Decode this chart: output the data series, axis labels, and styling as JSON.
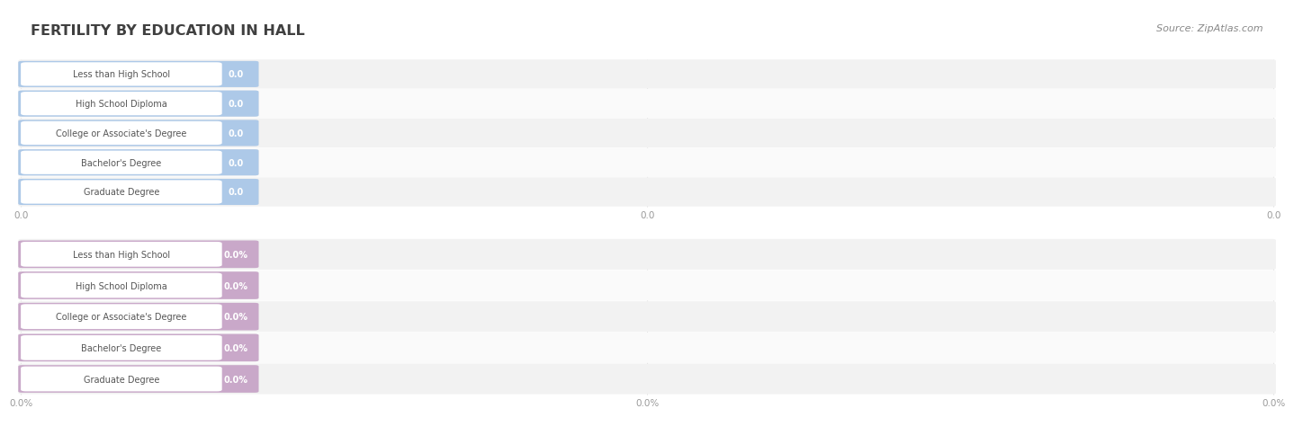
{
  "title": "FERTILITY BY EDUCATION IN HALL",
  "source": "Source: ZipAtlas.com",
  "background_color": "#ffffff",
  "section1": {
    "categories": [
      "Less than High School",
      "High School Diploma",
      "College or Associate's Degree",
      "Bachelor's Degree",
      "Graduate Degree"
    ],
    "values": [
      0.0,
      0.0,
      0.0,
      0.0,
      0.0
    ],
    "bar_color": "#adc9e8",
    "value_color": "#ffffff",
    "axis_ticks": [
      "0.0",
      "0.0",
      "0.0"
    ],
    "xmax": 1.0
  },
  "section2": {
    "categories": [
      "Less than High School",
      "High School Diploma",
      "College or Associate's Degree",
      "Bachelor's Degree",
      "Graduate Degree"
    ],
    "values": [
      0.0,
      0.0,
      0.0,
      0.0,
      0.0
    ],
    "bar_color": "#c9a8c9",
    "value_color": "#ffffff",
    "axis_ticks": [
      "0.0%",
      "0.0%",
      "0.0%"
    ],
    "xmax": 1.0
  },
  "bar_bg_color": "#e8e8e8",
  "row_bg_even": "#f2f2f2",
  "row_bg_odd": "#fafafa",
  "title_color": "#404040",
  "tick_color": "#999999",
  "source_color": "#888888",
  "grid_color": "#dddddd",
  "label_text_color": "#555555",
  "pill_bg_color": "#ffffff"
}
